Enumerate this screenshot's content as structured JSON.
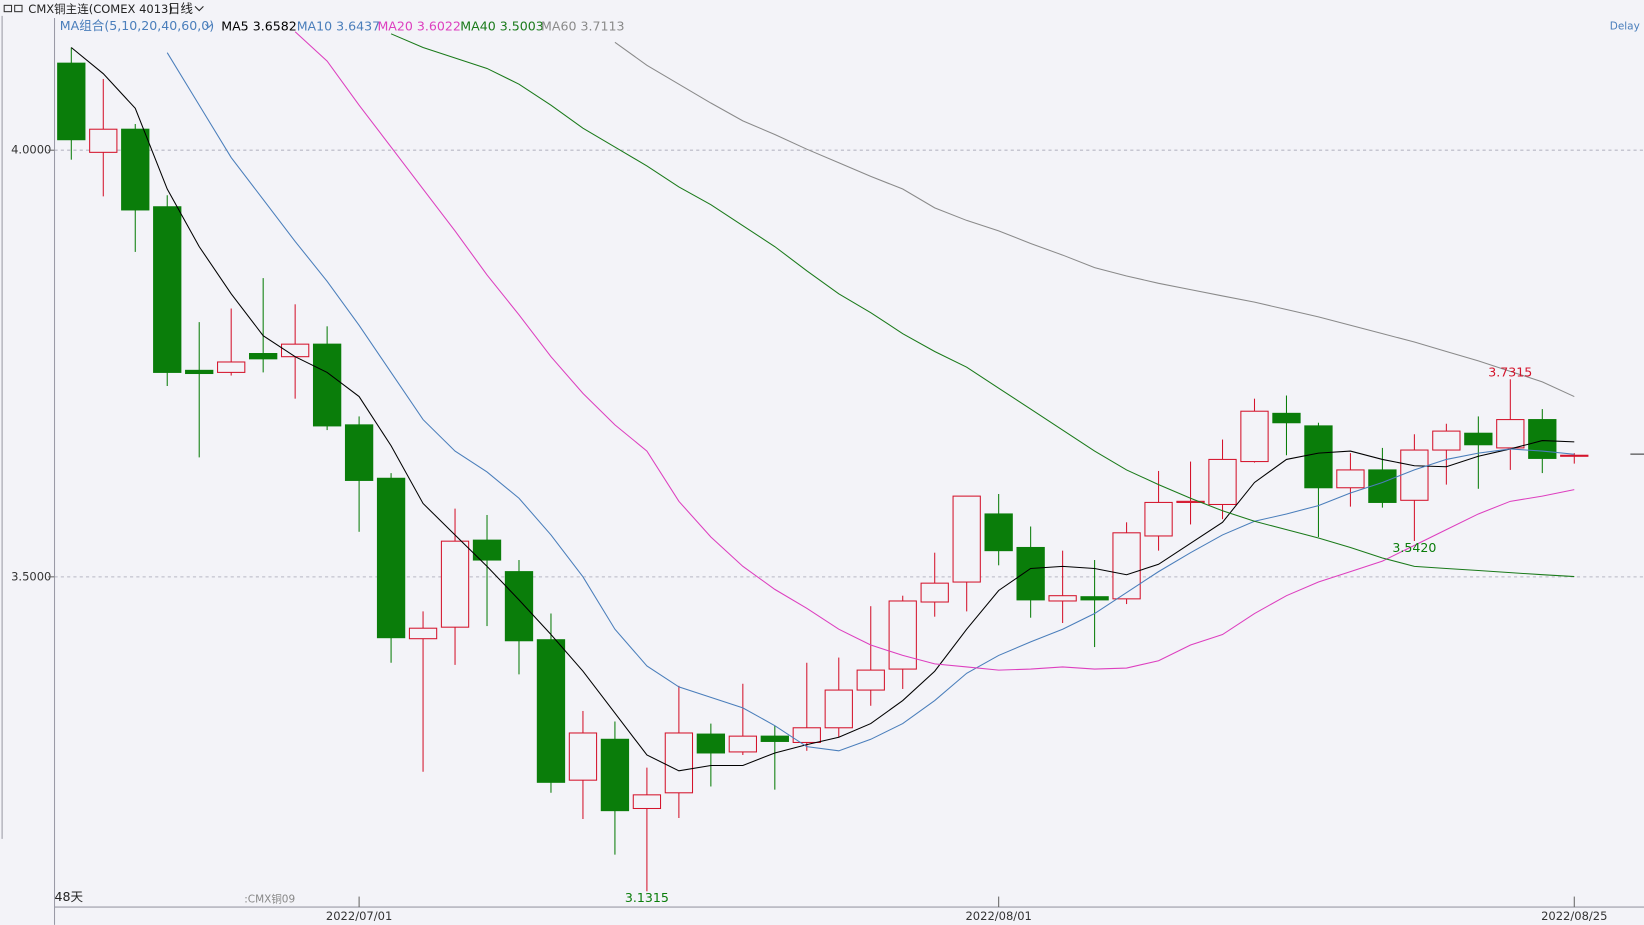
{
  "chart_data": {
    "type": "candlestick",
    "title": "CMX铜主连(COMEX 4013)",
    "period": "日线",
    "indicator_label": "MA组合(5,10,20,40,60,0)",
    "delay_label": "Delay",
    "count_label": "48天",
    "contract_label": ":CMX铜09",
    "categories": [
      null,
      null,
      null,
      null,
      null,
      null,
      null,
      null,
      null,
      "2022/07/01",
      null,
      null,
      null,
      null,
      null,
      null,
      null,
      null,
      null,
      null,
      null,
      null,
      null,
      null,
      null,
      null,
      null,
      null,
      null,
      "2022/08/01",
      null,
      null,
      null,
      null,
      null,
      null,
      null,
      null,
      null,
      null,
      null,
      null,
      null,
      null,
      null,
      null,
      null,
      "2022/08/25"
    ],
    "open": [
      4.102,
      3.9975,
      4.0246,
      3.9337,
      3.742,
      3.7396,
      3.7617,
      3.758,
      3.7727,
      3.6781,
      3.6155,
      3.4275,
      3.441,
      3.543,
      3.5061,
      3.4263,
      3.2617,
      3.3096,
      3.2285,
      3.2469,
      3.3157,
      3.2948,
      3.3133,
      3.3059,
      3.3231,
      3.3673,
      3.3919,
      3.4705,
      3.4939,
      3.5737,
      3.5344,
      3.4717,
      3.4767,
      3.4742,
      3.5479,
      3.5872,
      3.5848,
      3.6351,
      3.6916,
      3.6769,
      3.6044,
      3.6253,
      3.5897,
      3.6486,
      3.6683,
      3.6511,
      3.6843,
      3.6413
    ],
    "high": [
      4.1204,
      4.0835,
      4.0307,
      3.9472,
      3.7985,
      3.8145,
      3.8501,
      3.8194,
      3.7936,
      3.688,
      3.6216,
      3.4595,
      3.5799,
      3.5725,
      3.5197,
      3.457,
      3.3428,
      3.3305,
      3.2764,
      3.3722,
      3.328,
      3.3747,
      3.3256,
      3.3993,
      3.4054,
      3.4656,
      3.4779,
      3.5283,
      3.5946,
      3.5971,
      3.559,
      3.5307,
      3.5197,
      3.5639,
      3.6241,
      3.6351,
      3.6609,
      3.7088,
      3.7125,
      3.6806,
      3.645,
      3.6511,
      3.6671,
      3.6794,
      3.688,
      3.7315,
      3.6966,
      3.645
    ],
    "low": [
      3.9889,
      3.9459,
      3.8808,
      3.7236,
      3.64,
      3.7359,
      3.7396,
      3.7088,
      3.672,
      3.5528,
      3.3993,
      3.2715,
      3.3968,
      3.4423,
      3.3857,
      3.2469,
      3.2162,
      3.1745,
      3.1315,
      3.2174,
      3.2543,
      3.2912,
      3.2506,
      3.2961,
      3.312,
      3.3489,
      3.3686,
      3.4533,
      3.4595,
      3.5135,
      3.4521,
      3.4459,
      3.4177,
      3.4681,
      3.5307,
      3.5614,
      3.5676,
      3.6339,
      3.6425,
      3.5467,
      3.5823,
      3.5811,
      3.542,
      3.6081,
      3.6032,
      3.6253,
      3.6216,
      3.6327
    ],
    "close": [
      4.0123,
      4.0246,
      3.93,
      3.7396,
      3.7383,
      3.7518,
      3.7555,
      3.7727,
      3.6769,
      3.613,
      3.4287,
      3.4398,
      3.5418,
      3.5197,
      3.4251,
      3.2592,
      3.317,
      3.226,
      3.2445,
      3.317,
      3.2936,
      3.3133,
      3.3071,
      3.3231,
      3.3673,
      3.3907,
      3.4717,
      3.4926,
      3.5946,
      3.5307,
      3.473,
      3.4779,
      3.473,
      3.5516,
      3.5872,
      3.5885,
      3.6376,
      3.6941,
      3.6806,
      3.6044,
      3.6253,
      3.5872,
      3.6486,
      3.6708,
      3.6548,
      3.6843,
      3.6388,
      3.6425
    ],
    "up_color": "#d4142c",
    "down_color": "#0a7d0a",
    "series": [
      {
        "name": "MA5",
        "color": "#000000",
        "last": 3.6582,
        "values": [
          4.1204,
          4.0897,
          4.0491,
          3.9545,
          3.887,
          3.8317,
          3.7826,
          3.758,
          3.7396,
          3.7113,
          3.6536,
          3.586,
          3.5491,
          3.5123,
          3.473,
          3.4324,
          3.3894,
          3.3403,
          3.2912,
          3.2727,
          3.2789,
          3.2789,
          3.2936,
          3.3034,
          3.312,
          3.328,
          3.355,
          3.3894,
          3.4386,
          3.484,
          3.5098,
          3.5123,
          3.5098,
          3.5025,
          3.5147,
          3.5393,
          3.5639,
          3.6106,
          3.6376,
          3.645,
          3.6474,
          3.6376,
          3.6302,
          3.629,
          3.6413,
          3.6499,
          3.6597,
          3.6582
        ]
      },
      {
        "name": "MA10",
        "color": "#4a7ebb",
        "last": 3.6437,
        "values": [
          null,
          null,
          null,
          4.1143,
          4.0528,
          3.9914,
          3.9423,
          3.8931,
          3.8464,
          3.7948,
          3.7396,
          3.6843,
          3.6474,
          3.6229,
          3.5921,
          3.5491,
          3.5,
          3.4386,
          3.3956,
          3.371,
          3.3587,
          3.3464,
          3.3256,
          3.301,
          3.2961,
          3.3096,
          3.328,
          3.355,
          3.387,
          3.4079,
          3.4238,
          3.4386,
          3.457,
          3.4816,
          3.5061,
          3.5283,
          3.5491,
          3.5651,
          3.5737,
          3.5835,
          3.5983,
          3.6106,
          3.6253,
          3.6376,
          3.645,
          3.6499,
          3.6474,
          3.6437
        ]
      },
      {
        "name": "MA20",
        "color": "#dd3fbf",
        "last": 3.6022,
        "values": [
          null,
          null,
          null,
          null,
          null,
          null,
          null,
          4.1388,
          4.1044,
          4.0528,
          4.0037,
          3.9545,
          3.9054,
          3.8538,
          3.8071,
          3.758,
          3.715,
          3.6781,
          3.6474,
          3.5885,
          3.5467,
          3.5123,
          3.4853,
          3.4631,
          3.4386,
          3.4201,
          3.4079,
          3.398,
          3.3944,
          3.3907,
          3.3919,
          3.3944,
          3.3919,
          3.3931,
          3.4017,
          3.4201,
          3.4324,
          3.457,
          3.4779,
          3.4939,
          3.5061,
          3.5184,
          3.5369,
          3.5553,
          3.5737,
          3.5885,
          3.5946,
          3.6022
        ]
      },
      {
        "name": "MA40",
        "color": "#1a7a1a",
        "last": 3.5003,
        "values": [
          null,
          null,
          null,
          null,
          null,
          null,
          null,
          null,
          null,
          null,
          4.1364,
          4.1204,
          4.1081,
          4.0958,
          4.0774,
          4.0528,
          4.0258,
          4.0037,
          3.9816,
          3.957,
          3.9361,
          3.9115,
          3.887,
          3.8587,
          3.8317,
          3.8096,
          3.785,
          3.7641,
          3.7457,
          3.7211,
          3.6966,
          3.672,
          3.6474,
          3.6253,
          3.6081,
          3.5921,
          3.5774,
          3.5651,
          3.5553,
          3.5455,
          3.5344,
          3.5221,
          3.5123,
          3.5098,
          3.5074,
          3.5049,
          3.5025,
          3.5003
        ]
      },
      {
        "name": "MA60",
        "color": "#8a8a8a",
        "last": 3.7113,
        "values": [
          null,
          null,
          null,
          null,
          null,
          null,
          null,
          null,
          null,
          null,
          null,
          null,
          null,
          null,
          null,
          null,
          null,
          4.1265,
          4.0995,
          4.0774,
          4.0553,
          4.0344,
          4.0184,
          4.0012,
          3.9853,
          3.9693,
          3.9545,
          3.9324,
          3.9177,
          3.9054,
          3.8907,
          3.8771,
          3.8624,
          3.8526,
          3.844,
          3.8366,
          3.8292,
          3.8219,
          3.8133,
          3.8047,
          3.7948,
          3.785,
          3.7752,
          3.7641,
          3.7531,
          3.7408,
          3.7285,
          3.7113
        ]
      }
    ],
    "annotations": [
      {
        "value": 3.7315,
        "label": "3.7315"
      },
      {
        "value": 3.542,
        "label": "3.5420"
      },
      {
        "value": 3.1315,
        "label": "3.1315"
      }
    ],
    "ylim": [
      3.113,
      4.155
    ],
    "yticks": [
      {
        "value": 4,
        "label": "4.0000"
      },
      {
        "value": 3.5,
        "label": "3.5000"
      }
    ],
    "grid": true
  }
}
